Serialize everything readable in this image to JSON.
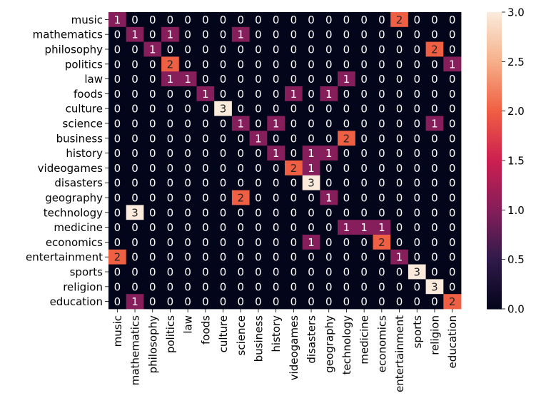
{
  "chart_data": {
    "type": "heatmap",
    "title": "",
    "xlabel": "",
    "ylabel": "",
    "rows": [
      "music",
      "mathematics",
      "philosophy",
      "politics",
      "law",
      "foods",
      "culture",
      "science",
      "business",
      "history",
      "videogames",
      "disasters",
      "geography",
      "technology",
      "medicine",
      "economics",
      "entertainment",
      "sports",
      "religion",
      "education"
    ],
    "columns": [
      "music",
      "mathematics",
      "philosophy",
      "politics",
      "law",
      "foods",
      "culture",
      "science",
      "business",
      "history",
      "videogames",
      "disasters",
      "geography",
      "technology",
      "medicine",
      "economics",
      "entertainment",
      "sports",
      "religion",
      "education"
    ],
    "values": [
      [
        1,
        0,
        0,
        0,
        0,
        0,
        0,
        0,
        0,
        0,
        0,
        0,
        0,
        0,
        0,
        0,
        2,
        0,
        0,
        0
      ],
      [
        0,
        1,
        0,
        1,
        0,
        0,
        0,
        1,
        0,
        0,
        0,
        0,
        0,
        0,
        0,
        0,
        0,
        0,
        0,
        0
      ],
      [
        0,
        0,
        1,
        0,
        0,
        0,
        0,
        0,
        0,
        0,
        0,
        0,
        0,
        0,
        0,
        0,
        0,
        0,
        2,
        0
      ],
      [
        0,
        0,
        0,
        2,
        0,
        0,
        0,
        0,
        0,
        0,
        0,
        0,
        0,
        0,
        0,
        0,
        0,
        0,
        0,
        1
      ],
      [
        0,
        0,
        0,
        1,
        1,
        0,
        0,
        0,
        0,
        0,
        0,
        0,
        0,
        1,
        0,
        0,
        0,
        0,
        0,
        0
      ],
      [
        0,
        0,
        0,
        0,
        0,
        1,
        0,
        0,
        0,
        0,
        1,
        0,
        1,
        0,
        0,
        0,
        0,
        0,
        0,
        0
      ],
      [
        0,
        0,
        0,
        0,
        0,
        0,
        3,
        0,
        0,
        0,
        0,
        0,
        0,
        0,
        0,
        0,
        0,
        0,
        0,
        0
      ],
      [
        0,
        0,
        0,
        0,
        0,
        0,
        0,
        1,
        0,
        1,
        0,
        0,
        0,
        0,
        0,
        0,
        0,
        0,
        1,
        0
      ],
      [
        0,
        0,
        0,
        0,
        0,
        0,
        0,
        0,
        1,
        0,
        0,
        0,
        0,
        2,
        0,
        0,
        0,
        0,
        0,
        0
      ],
      [
        0,
        0,
        0,
        0,
        0,
        0,
        0,
        0,
        0,
        1,
        0,
        1,
        1,
        0,
        0,
        0,
        0,
        0,
        0,
        0
      ],
      [
        0,
        0,
        0,
        0,
        0,
        0,
        0,
        0,
        0,
        0,
        2,
        1,
        0,
        0,
        0,
        0,
        0,
        0,
        0,
        0
      ],
      [
        0,
        0,
        0,
        0,
        0,
        0,
        0,
        0,
        0,
        0,
        0,
        3,
        0,
        0,
        0,
        0,
        0,
        0,
        0,
        0
      ],
      [
        0,
        0,
        0,
        0,
        0,
        0,
        0,
        2,
        0,
        0,
        0,
        0,
        1,
        0,
        0,
        0,
        0,
        0,
        0,
        0
      ],
      [
        0,
        3,
        0,
        0,
        0,
        0,
        0,
        0,
        0,
        0,
        0,
        0,
        0,
        0,
        0,
        0,
        0,
        0,
        0,
        0
      ],
      [
        0,
        0,
        0,
        0,
        0,
        0,
        0,
        0,
        0,
        0,
        0,
        0,
        0,
        1,
        1,
        1,
        0,
        0,
        0,
        0
      ],
      [
        0,
        0,
        0,
        0,
        0,
        0,
        0,
        0,
        0,
        0,
        0,
        1,
        0,
        0,
        0,
        2,
        0,
        0,
        0,
        0
      ],
      [
        2,
        0,
        0,
        0,
        0,
        0,
        0,
        0,
        0,
        0,
        0,
        0,
        0,
        0,
        0,
        0,
        1,
        0,
        0,
        0
      ],
      [
        0,
        0,
        0,
        0,
        0,
        0,
        0,
        0,
        0,
        0,
        0,
        0,
        0,
        0,
        0,
        0,
        0,
        3,
        0,
        0
      ],
      [
        0,
        0,
        0,
        0,
        0,
        0,
        0,
        0,
        0,
        0,
        0,
        0,
        0,
        0,
        0,
        0,
        0,
        0,
        3,
        0
      ],
      [
        0,
        1,
        0,
        0,
        0,
        0,
        0,
        0,
        0,
        0,
        0,
        0,
        0,
        0,
        0,
        0,
        0,
        0,
        0,
        2
      ]
    ],
    "colorbar": {
      "range": [
        0,
        3
      ],
      "ticks": [
        "0.0",
        "0.5",
        "1.0",
        "1.5",
        "2.0",
        "2.5",
        "3.0"
      ],
      "colors": {
        "0": "#03051a",
        "1": "#841e5a",
        "2": "#f06043",
        "3": "#faebdd"
      }
    },
    "annotations": true,
    "grid": false
  }
}
